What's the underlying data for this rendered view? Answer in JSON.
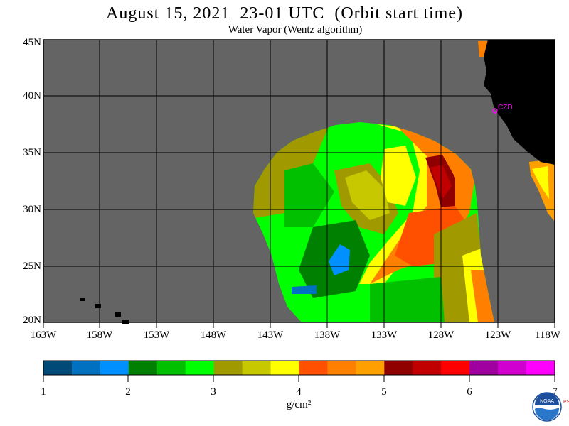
{
  "title": "August 15, 2021  23-01 UTC  (Orbit start time)",
  "subtitle": "Water Vapor (Wentz algorithm)",
  "lat_labels": [
    "45N",
    "40N",
    "35N",
    "30N",
    "25N",
    "20N"
  ],
  "lon_labels": [
    "163W",
    "158W",
    "153W",
    "148W",
    "143W",
    "138W",
    "133W",
    "128W",
    "123W",
    "118W"
  ],
  "colorbar": {
    "ticks": [
      "1",
      "2",
      "3",
      "4",
      "5",
      "6",
      "7"
    ],
    "unit": "g/cm²",
    "colors": [
      "#004a78",
      "#0070c0",
      "#0090ff",
      "#008000",
      "#00c000",
      "#00ff00",
      "#a09a00",
      "#c8c800",
      "#ffff00",
      "#ff5000",
      "#ff8000",
      "#ffa000",
      "#900000",
      "#c00000",
      "#ff0000",
      "#a000a0",
      "#d000d0",
      "#ff00ff"
    ]
  },
  "map_colors": {
    "no_data": "#646464",
    "land": "#000000",
    "grid": "#000000"
  },
  "station_label": "CZD",
  "logo": {
    "text": "NOAA",
    "side_text": "PSL"
  }
}
